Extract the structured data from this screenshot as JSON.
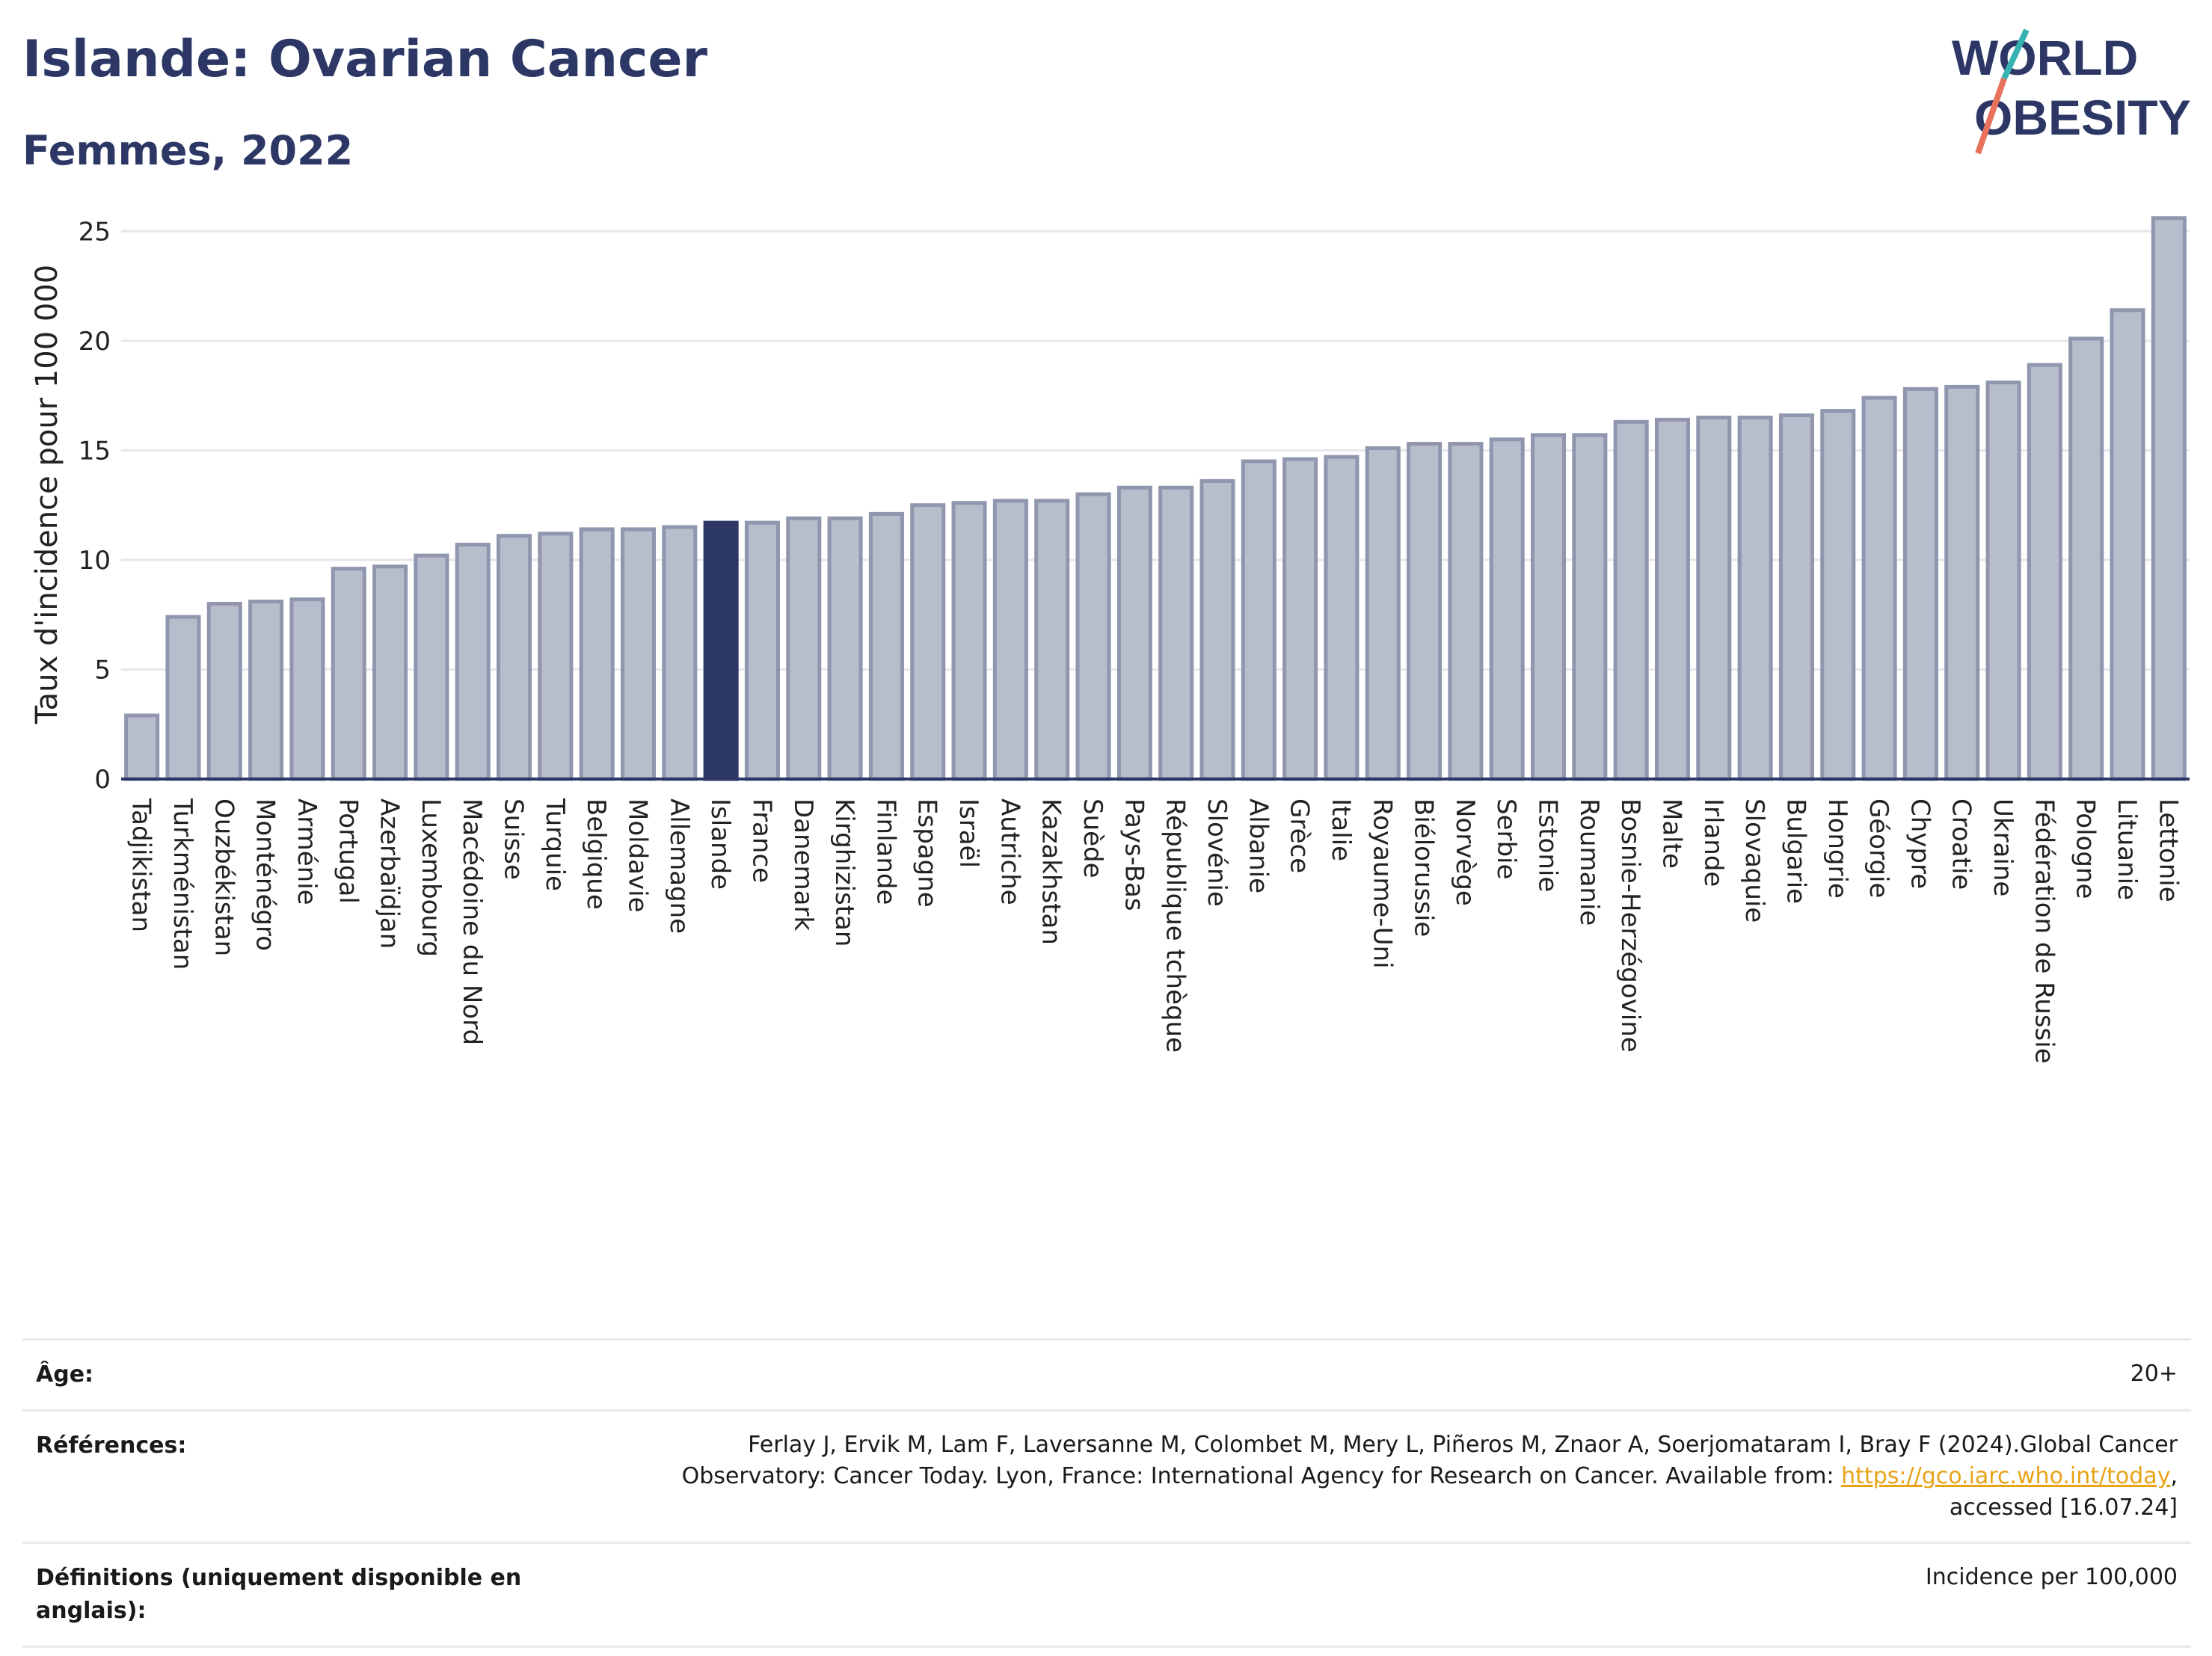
{
  "header": {
    "title": "Islande: Ovarian Cancer",
    "subtitle": "Femmes, 2022"
  },
  "logo": {
    "line1": "WORLD",
    "line2": "OBESITY"
  },
  "chart_data": {
    "type": "bar",
    "ylabel": "Taux d'incidence pour 100 000",
    "ylim": [
      0,
      26
    ],
    "yticks": [
      0,
      5,
      10,
      15,
      20,
      25
    ],
    "grid": true,
    "highlight": "Islande",
    "colors": {
      "bar": "#b8bdcc",
      "bar_edge": "#8f96ad",
      "highlight": "#2c3766"
    },
    "categories": [
      "Tadjikistan",
      "Turkménistan",
      "Ouzbékistan",
      "Monténégro",
      "Arménie",
      "Portugal",
      "Azerbaïdjan",
      "Luxembourg",
      "Macédoine du Nord",
      "Suisse",
      "Turquie",
      "Belgique",
      "Moldavie",
      "Allemagne",
      "Islande",
      "France",
      "Danemark",
      "Kirghizistan",
      "Finlande",
      "Espagne",
      "Israël",
      "Autriche",
      "Kazakhstan",
      "Suède",
      "Pays-Bas",
      "République tchèque",
      "Slovénie",
      "Albanie",
      "Grèce",
      "Italie",
      "Royaume-Uni",
      "Biélorussie",
      "Norvège",
      "Serbie",
      "Estonie",
      "Roumanie",
      "Bosnie-Herzégovine",
      "Malte",
      "Irlande",
      "Slovaquie",
      "Bulgarie",
      "Hongrie",
      "Géorgie",
      "Chypre",
      "Croatie",
      "Ukraine",
      "Fédération de Russie",
      "Pologne",
      "Lituanie",
      "Lettonie"
    ],
    "values": [
      2.9,
      7.4,
      8.0,
      8.1,
      8.2,
      9.6,
      9.7,
      10.2,
      10.7,
      11.1,
      11.2,
      11.4,
      11.4,
      11.5,
      11.7,
      11.7,
      11.9,
      11.9,
      12.1,
      12.5,
      12.6,
      12.7,
      12.7,
      13.0,
      13.3,
      13.3,
      13.6,
      14.5,
      14.6,
      14.7,
      15.1,
      15.3,
      15.3,
      15.5,
      15.7,
      15.7,
      16.3,
      16.4,
      16.5,
      16.5,
      16.6,
      16.8,
      17.4,
      17.8,
      17.9,
      18.1,
      18.9,
      20.1,
      21.4,
      25.6
    ]
  },
  "footer": {
    "age_label": "Âge:",
    "age_value": "20+",
    "refs_label": "Références:",
    "refs_text_1": "Ferlay J, Ervik M, Lam F, Laversanne M, Colombet M, Mery L, Piñeros M, Znaor A, Soerjomataram I, Bray F (2024).Global Cancer",
    "refs_text_2": "Observatory: Cancer Today. Lyon, France: International Agency for Research on Cancer. Available from: ",
    "refs_link": "https://gco.iarc.who.int/today",
    "refs_text_3": ",",
    "refs_text_4": "accessed [16.07.24]",
    "defs_label": "Définitions (uniquement disponible en anglais):",
    "defs_value": "Incidence per 100,000"
  }
}
